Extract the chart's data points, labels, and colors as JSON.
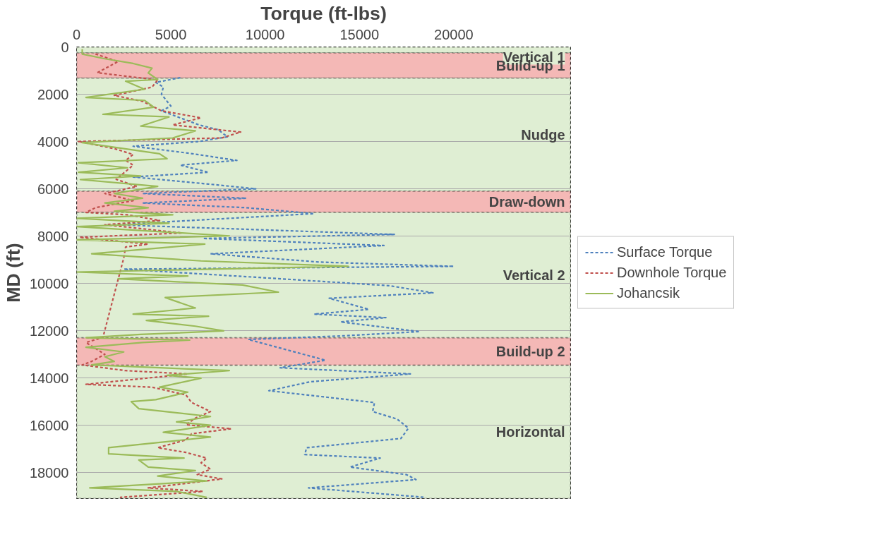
{
  "chart_data": {
    "type": "line",
    "orientation": "horizontal",
    "xlabel": "Torque (ft-lbs)",
    "ylabel": "MD (ft)",
    "xlim": [
      0,
      26200
    ],
    "xticks": [
      0,
      5000,
      10000,
      15000,
      20000
    ],
    "ylim": [
      19100,
      0
    ],
    "yticks": [
      0,
      2000,
      4000,
      6000,
      8000,
      10000,
      12000,
      14000,
      16000,
      18000
    ],
    "grid": "y",
    "legend": "right",
    "bands": [
      {
        "axis": "y",
        "from": 0,
        "to": 250,
        "label": "Vertical 1",
        "color": "#dfeed3"
      },
      {
        "axis": "y",
        "from": 250,
        "to": 1320,
        "label": "Build-up 1",
        "color": "#f4b8b6"
      },
      {
        "axis": "y",
        "from": 1320,
        "to": 6100,
        "label": "Nudge",
        "color": "#dfeed3"
      },
      {
        "axis": "y",
        "from": 6100,
        "to": 7000,
        "label": "Draw-down",
        "color": "#f4b8b6"
      },
      {
        "axis": "y",
        "from": 7000,
        "to": 12300,
        "label": "Vertical 2",
        "color": "#dfeed3"
      },
      {
        "axis": "y",
        "from": 12300,
        "to": 13470,
        "label": "Build-up 2",
        "color": "#f4b8b6"
      },
      {
        "axis": "y",
        "from": 13470,
        "to": 19100,
        "label": "Horizontal",
        "color": "#dfeed3"
      }
    ],
    "series": [
      {
        "name": "Surface Torque",
        "color": "#4f81bd",
        "line_style": "dashed",
        "x": [
          1300,
          1500,
          1700,
          2000,
          2300,
          2500,
          2700,
          3000,
          3300,
          3500,
          3800,
          4000,
          4200,
          4500,
          4800,
          5000,
          5300,
          5500,
          5800,
          6000,
          6200,
          6400,
          6600,
          6800,
          7050,
          7520,
          7930,
          8100,
          8400,
          8750,
          9100,
          9280,
          9400,
          9750,
          10100,
          10400,
          10630,
          11100,
          11300,
          11450,
          11630,
          12040,
          12220,
          12370,
          12800,
          13250,
          13570,
          13830,
          14160,
          14540,
          15040,
          15420,
          15740,
          16120,
          16560,
          16950,
          17240,
          17390,
          17770,
          18090,
          18300,
          18650,
          19050
        ],
        "values": [
          5500,
          4200,
          4600,
          4500,
          4800,
          5000,
          4500,
          5500,
          6500,
          7500,
          8000,
          6500,
          3000,
          6000,
          8500,
          5500,
          7000,
          3000,
          7000,
          9500,
          3500,
          9000,
          3500,
          9000,
          12600,
          2000,
          16850,
          6700,
          16300,
          7100,
          12900,
          20000,
          2500,
          9700,
          16600,
          18900,
          13400,
          15500,
          12600,
          16400,
          14000,
          18200,
          14100,
          9100,
          11100,
          13200,
          10800,
          17700,
          12400,
          10200,
          15800,
          15700,
          17000,
          17600,
          17200,
          12200,
          12100,
          16100,
          14500,
          17500,
          18000,
          12300,
          18500
        ]
      },
      {
        "name": "Downhole Torque",
        "color": "#c0504d",
        "line_style": "dashed",
        "x": [
          300,
          620,
          1090,
          1400,
          1700,
          2050,
          2300,
          2700,
          3000,
          3300,
          3600,
          3850,
          4000,
          4300,
          4550,
          4800,
          5000,
          5600,
          5900,
          6200,
          6500,
          6800,
          7000,
          7100,
          7340,
          7520,
          7870,
          8050,
          8340,
          8460,
          8930,
          12280,
          12500,
          13000,
          13300,
          13450,
          13690,
          13830,
          14270,
          14390,
          14720,
          15040,
          15420,
          15700,
          15980,
          16150,
          16360,
          16620,
          16950,
          17150,
          17390,
          17590,
          17860,
          18090,
          18270,
          18470,
          18650,
          18800,
          19050
        ],
        "values": [
          1000,
          2200,
          1100,
          4300,
          4000,
          2000,
          3500,
          4500,
          6600,
          5100,
          8700,
          7700,
          100,
          2000,
          3000,
          2600,
          3000,
          2100,
          3200,
          1500,
          3000,
          1000,
          500,
          2700,
          4400,
          1500,
          5600,
          150,
          3800,
          2600,
          2500,
          1400,
          500,
          1500,
          800,
          300,
          2600,
          5900,
          500,
          4000,
          5800,
          6100,
          7100,
          6300,
          5800,
          8200,
          6100,
          5800,
          4300,
          5800,
          6900,
          6600,
          7100,
          6400,
          7700,
          5700,
          3800,
          6700,
          2300
        ]
      },
      {
        "name": "Johancsik",
        "color": "#9bbb59",
        "line_style": "solid",
        "x": [
          100,
          300,
          500,
          700,
          900,
          1100,
          1380,
          1450,
          1790,
          2140,
          2260,
          2550,
          2850,
          2960,
          3350,
          3550,
          3850,
          4050,
          4520,
          4730,
          4900,
          5110,
          5300,
          5460,
          5610,
          5900,
          6200,
          6400,
          6600,
          6800,
          6950,
          7100,
          7250,
          7460,
          7600,
          7990,
          8160,
          8340,
          8750,
          9050,
          9280,
          9520,
          9690,
          9810,
          10070,
          10370,
          10600,
          11040,
          11300,
          11390,
          11570,
          11810,
          12010,
          12160,
          12300,
          12400,
          12500,
          12700,
          12900,
          13100,
          13300,
          13450,
          13690,
          13890,
          14010,
          14390,
          14600,
          14920,
          15000,
          15300,
          15630,
          15860,
          16000,
          16300,
          16500,
          16950,
          17210,
          17390,
          17470,
          17770,
          17920,
          18150,
          18360,
          18650,
          18800,
          19050
        ],
        "values": [
          300,
          300,
          1500,
          3000,
          4000,
          3800,
          4300,
          2600,
          3600,
          500,
          3600,
          4100,
          1400,
          4900,
          3400,
          6300,
          5100,
          300,
          4400,
          4800,
          100,
          2700,
          100,
          3400,
          200,
          4300,
          2000,
          3500,
          1500,
          3800,
          2000,
          5100,
          0,
          4900,
          0,
          8100,
          0,
          6800,
          800,
          6600,
          14400,
          0,
          5900,
          2200,
          8800,
          10700,
          4700,
          6300,
          3000,
          7000,
          3700,
          6300,
          7800,
          3400,
          500,
          6000,
          3500,
          500,
          2500,
          1500,
          2000,
          800,
          8100,
          4800,
          6600,
          4400,
          5900,
          4200,
          2900,
          3300,
          7100,
          5300,
          7100,
          4600,
          7100,
          1700,
          1700,
          5700,
          3300,
          3800,
          6300,
          4300,
          6900,
          700,
          5300,
          6900
        ]
      }
    ]
  }
}
